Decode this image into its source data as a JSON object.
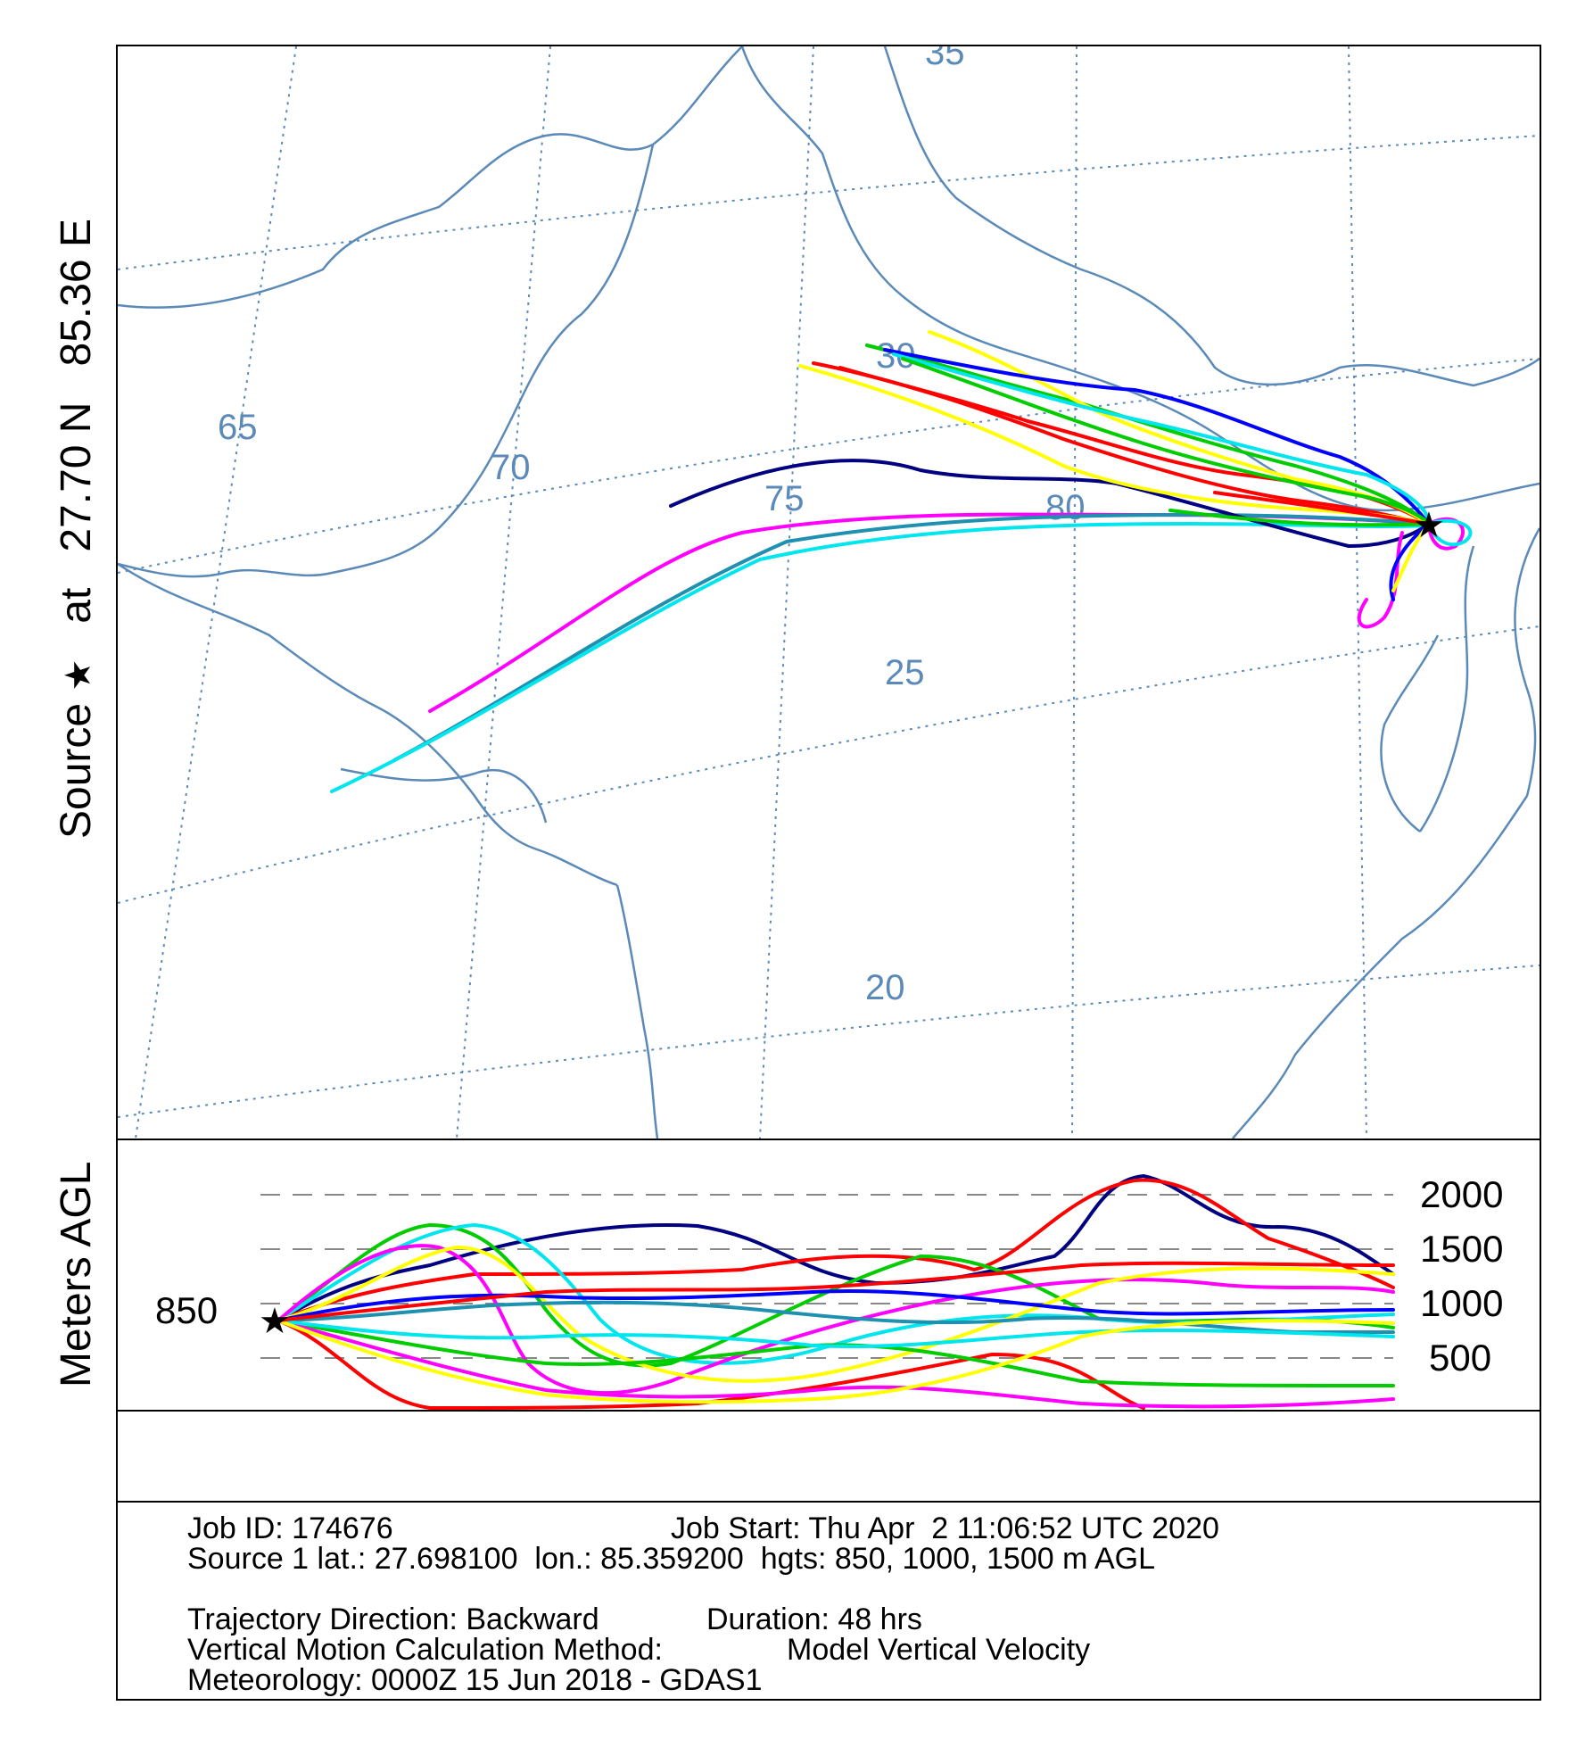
{
  "source_label": {
    "source": "Source",
    "star": "★",
    "at": "at",
    "lat": "27.70 N",
    "lon": "85.36 E"
  },
  "map": {
    "lon_labels": [
      "65",
      "70",
      "75",
      "80"
    ],
    "lat_labels": [
      "35",
      "30",
      "25",
      "20"
    ],
    "source_marker": "★",
    "coast_color": "#5b8ab8",
    "grid_color": "#5b8ab8"
  },
  "height_panel": {
    "ylabel": "Meters AGL",
    "start_height": "850",
    "ticks": [
      "2000",
      "1500",
      "1000",
      "500"
    ]
  },
  "trajectory_colors": [
    "#ff0000",
    "#0000ff",
    "#00cc00",
    "#00e5ee",
    "#ff00ff",
    "#ffff00",
    "#1e90b0",
    "#000080"
  ],
  "info": {
    "job_id": "Job ID: 174676",
    "job_start": "Job Start: Thu Apr  2 11:06:52 UTC 2020",
    "source_line": "Source 1 lat.: 27.698100  lon.: 85.359200  hgts: 850, 1000, 1500 m AGL",
    "direction": "Trajectory Direction: Backward",
    "duration": "Duration: 48 hrs",
    "vertical_method": "Vertical Motion Calculation Method:",
    "vertical_value": "Model Vertical Velocity",
    "meteorology": "Meteorology: 0000Z 15 Jun 2018 - GDAS1"
  }
}
